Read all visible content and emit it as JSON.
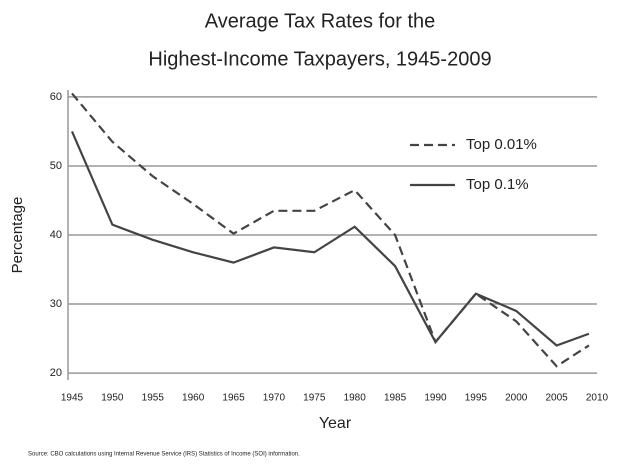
{
  "chart_data": {
    "type": "line",
    "title": [
      "Average Tax Rates for the",
      "Highest-Income Taxpayers, 1945-2009"
    ],
    "x_label": "Year",
    "y_label": "Percentage",
    "source": "Source: CBO calculations using Internal Revenue Service (IRS) Statistics of Income (SOI) information.",
    "x": [
      1945,
      1950,
      1955,
      1960,
      1965,
      1970,
      1975,
      1980,
      1985,
      1990,
      1995,
      2000,
      2005,
      2009
    ],
    "series": [
      {
        "name": "Top 0.01%",
        "color": "#444444",
        "style": "dashed",
        "values": [
          60.5,
          53.5,
          48.5,
          44.5,
          40.2,
          43.5,
          43.5,
          46.5,
          40,
          24.5,
          31.5,
          27.5,
          21,
          24
        ]
      },
      {
        "name": "Top 0.1%",
        "color": "#444444",
        "style": "solid",
        "values": [
          55,
          41.5,
          39.3,
          37.5,
          36,
          38.2,
          37.5,
          41.2,
          35.5,
          24.5,
          31.5,
          29,
          24,
          25.7
        ]
      }
    ],
    "xlim": [
      1945,
      2010
    ],
    "xticks": [
      1945,
      1950,
      1955,
      1960,
      1965,
      1970,
      1975,
      1980,
      1985,
      1990,
      1995,
      2000,
      2005,
      2010
    ],
    "ylim": [
      19,
      61
    ],
    "yticks": [
      20,
      30,
      40,
      50,
      60
    ],
    "grid": true,
    "legend": "upper right"
  }
}
